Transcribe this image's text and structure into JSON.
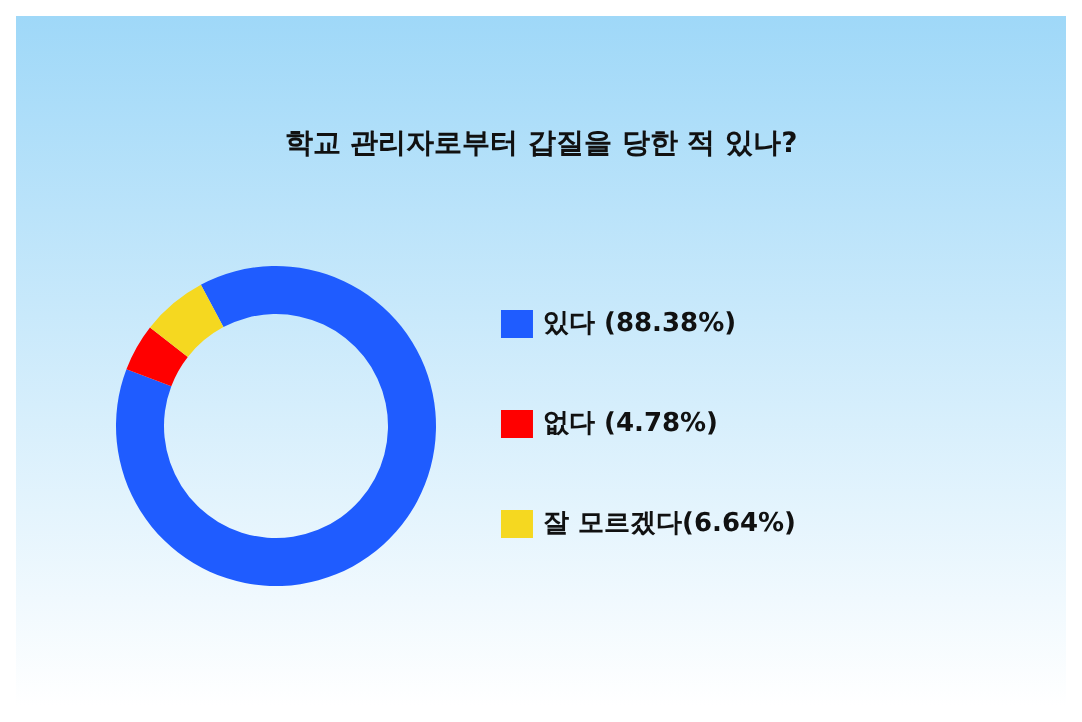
{
  "chart_data": {
    "type": "donut",
    "title": "학교 관리자로부터 갑질을 당한 적 있나?",
    "categories": [
      "있다 (88.38%)",
      "없다 (4.78%)",
      "잘 모르겠다(6.64%)"
    ],
    "values": [
      88.38,
      4.78,
      6.64
    ],
    "colors": [
      "#1f5cff",
      "#ff0000",
      "#f5d820"
    ],
    "legend": "right"
  }
}
